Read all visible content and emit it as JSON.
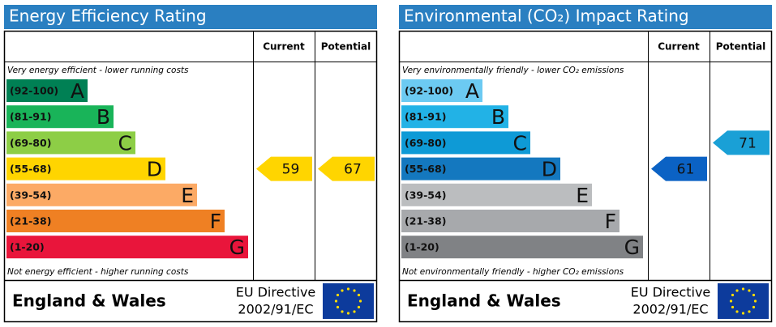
{
  "panels": [
    {
      "title": "Energy Efficiency Rating",
      "header": {
        "current": "Current",
        "potential": "Potential"
      },
      "top_note": "Very energy efficient - lower running costs",
      "bottom_note": "Not energy efficient - higher running costs",
      "bands": [
        {
          "range": "(92-100)",
          "letter": "A",
          "color": "#008054"
        },
        {
          "range": "(81-91)",
          "letter": "B",
          "color": "#19b459"
        },
        {
          "range": "(69-80)",
          "letter": "C",
          "color": "#8dce46"
        },
        {
          "range": "(55-68)",
          "letter": "D",
          "color": "#ffd500"
        },
        {
          "range": "(39-54)",
          "letter": "E",
          "color": "#fcaa65"
        },
        {
          "range": "(21-38)",
          "letter": "F",
          "color": "#ef8023"
        },
        {
          "range": "(1-20)",
          "letter": "G",
          "color": "#e9153b"
        }
      ],
      "current": {
        "value": 59,
        "color": "#ffd500"
      },
      "potential": {
        "value": 67,
        "color": "#ffd500"
      },
      "footer": {
        "region": "England & Wales",
        "directive": [
          "EU Directive",
          "2002/91/EC"
        ]
      }
    },
    {
      "title": "Environmental (CO₂) Impact Rating",
      "header": {
        "current": "Current",
        "potential": "Potential"
      },
      "top_note": "Very environmentally friendly - lower CO₂ emissions",
      "bottom_note": "Not environmentally friendly - higher CO₂ emissions",
      "bands": [
        {
          "range": "(92-100)",
          "letter": "A",
          "color": "#6ccaf2"
        },
        {
          "range": "(81-91)",
          "letter": "B",
          "color": "#22b2e6"
        },
        {
          "range": "(69-80)",
          "letter": "C",
          "color": "#0e9ad6"
        },
        {
          "range": "(55-68)",
          "letter": "D",
          "color": "#1478bf"
        },
        {
          "range": "(39-54)",
          "letter": "E",
          "color": "#bbbdbf"
        },
        {
          "range": "(21-38)",
          "letter": "F",
          "color": "#a7a9ac"
        },
        {
          "range": "(1-20)",
          "letter": "G",
          "color": "#808285"
        }
      ],
      "current": {
        "value": 61,
        "color": "#0b62c4"
      },
      "potential": {
        "value": 71,
        "color": "#1aa0d6"
      },
      "footer": {
        "region": "England & Wales",
        "directive": [
          "EU Directive",
          "2002/91/EC"
        ]
      }
    }
  ]
}
